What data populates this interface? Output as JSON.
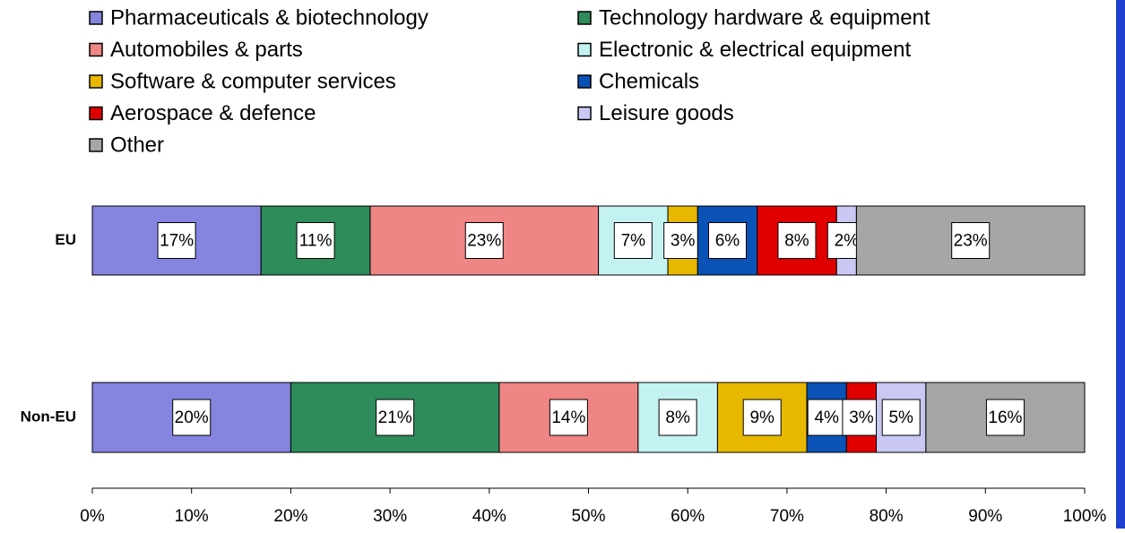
{
  "chart_data": {
    "type": "stacked-bar-horizontal",
    "categories": [
      "EU",
      "Non-EU"
    ],
    "series": [
      {
        "name": "Pharmaceuticals & biotechnology",
        "color": "#8585e0",
        "values": [
          17,
          20
        ],
        "value_labels": [
          "17%",
          "20%"
        ]
      },
      {
        "name": "Technology hardware & equipment",
        "color": "#2e8b5a",
        "values": [
          11,
          21
        ],
        "value_labels": [
          "11%",
          "21%"
        ]
      },
      {
        "name": "Automobiles & parts",
        "color": "#f08585",
        "values": [
          23,
          14
        ],
        "value_labels": [
          "23%",
          "14%"
        ]
      },
      {
        "name": "Electronic & electrical equipment",
        "color": "#c4f2f2",
        "values": [
          7,
          8
        ],
        "value_labels": [
          "7%",
          "8%"
        ]
      },
      {
        "name": "Software & computer services",
        "color": "#e8b800",
        "values": [
          3,
          9
        ],
        "value_labels": [
          "3%",
          "9%"
        ]
      },
      {
        "name": "Chemicals",
        "color": "#0a52b5",
        "values": [
          6,
          4
        ],
        "value_labels": [
          "6%",
          "4%"
        ]
      },
      {
        "name": "Aerospace & defence",
        "color": "#e00000",
        "values": [
          8,
          3
        ],
        "value_labels": [
          "8%",
          "3%"
        ]
      },
      {
        "name": "Leisure goods",
        "color": "#c8c8f2",
        "values": [
          2,
          5
        ],
        "value_labels": [
          "2%",
          "5%"
        ]
      },
      {
        "name": "Other",
        "color": "#a6a6a6",
        "values": [
          23,
          16
        ],
        "value_labels": [
          "23%",
          "16%"
        ]
      }
    ],
    "xlim": [
      0,
      100
    ],
    "xticks": [
      {
        "value": 0,
        "label": "0%"
      },
      {
        "value": 10,
        "label": "10%"
      },
      {
        "value": 20,
        "label": "20%"
      },
      {
        "value": 30,
        "label": "30%"
      },
      {
        "value": 40,
        "label": "40%"
      },
      {
        "value": 50,
        "label": "50%"
      },
      {
        "value": 60,
        "label": "60%"
      },
      {
        "value": 70,
        "label": "70%"
      },
      {
        "value": 80,
        "label": "80%"
      },
      {
        "value": 90,
        "label": "90%"
      },
      {
        "value": 100,
        "label": "100%"
      }
    ],
    "legend": "top"
  }
}
